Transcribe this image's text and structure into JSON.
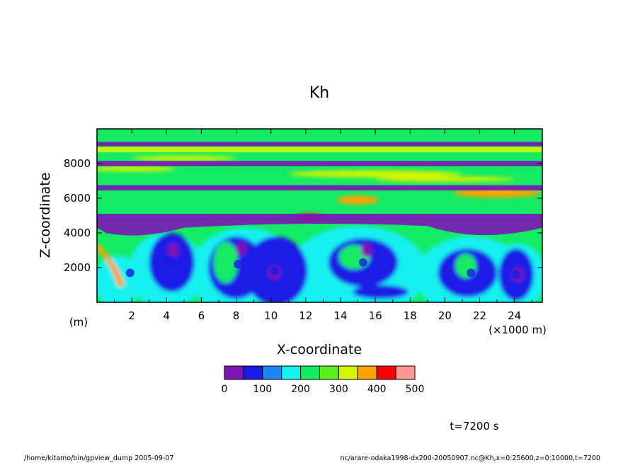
{
  "chart_data": {
    "type": "heatmap",
    "title": "Kh",
    "xlabel": "X-coordinate",
    "ylabel": "Z-coordinate",
    "x_unit_label": "(m)",
    "x_scale_label": "(×1000 m)",
    "xlim": [
      0,
      25.6
    ],
    "ylim": [
      0,
      10000
    ],
    "x_ticks": [
      2,
      4,
      6,
      8,
      10,
      12,
      14,
      16,
      18,
      20,
      22,
      24
    ],
    "x_tick_labels": [
      "2",
      "4",
      "6",
      "8",
      "10",
      "12",
      "14",
      "16",
      "18",
      "20",
      "22",
      "24"
    ],
    "y_ticks": [
      2000,
      4000,
      6000,
      8000
    ],
    "y_tick_labels": [
      "2000",
      "4000",
      "6000",
      "8000"
    ],
    "colorbar": {
      "levels": [
        0,
        50,
        100,
        150,
        200,
        250,
        300,
        350,
        400,
        450,
        500
      ],
      "labeled_levels": [
        "0",
        "100",
        "200",
        "300",
        "400",
        "500"
      ],
      "colors": [
        "#7b16b4",
        "#1a1ae6",
        "#1b86f0",
        "#14f0f0",
        "#14eb64",
        "#5af01e",
        "#d4f500",
        "#ffa000",
        "#fa0000",
        "#ff9696"
      ]
    },
    "fields": {
      "upper_bands": [
        {
          "z_from": 9350,
          "z_to": 9650,
          "level": 4
        },
        {
          "z_from": 9000,
          "z_to": 9250,
          "level": 0
        },
        {
          "z_from": 8650,
          "z_to": 8950,
          "level": 6
        },
        {
          "z_from": 7850,
          "z_to": 8150,
          "level": 0
        },
        {
          "z_from": 6450,
          "z_to": 6750,
          "level": 0
        },
        {
          "z_from": 4750,
          "z_to": 5100,
          "level": 0
        }
      ],
      "cells": [
        {
          "x": 1.9,
          "z": 1700,
          "level": 1
        },
        {
          "x": 4.2,
          "z": 2400,
          "level": 1
        },
        {
          "x": 8.1,
          "z": 2200,
          "level": 1
        },
        {
          "x": 10.2,
          "z": 1800,
          "level": 1
        },
        {
          "x": 15.3,
          "z": 2300,
          "level": 1
        },
        {
          "x": 21.5,
          "z": 1700,
          "level": 1
        },
        {
          "x": 24.1,
          "z": 1600,
          "level": 1
        }
      ]
    }
  },
  "annotations": {
    "time": "t=7200 s",
    "footer_left": "/home/kitamo/bin/gpview_dump  2005-09-07",
    "footer_right": "nc/arare-odaka1998-dx200-20050907.nc@Kh,x=0:25600,z=0:10000,t=7200"
  }
}
